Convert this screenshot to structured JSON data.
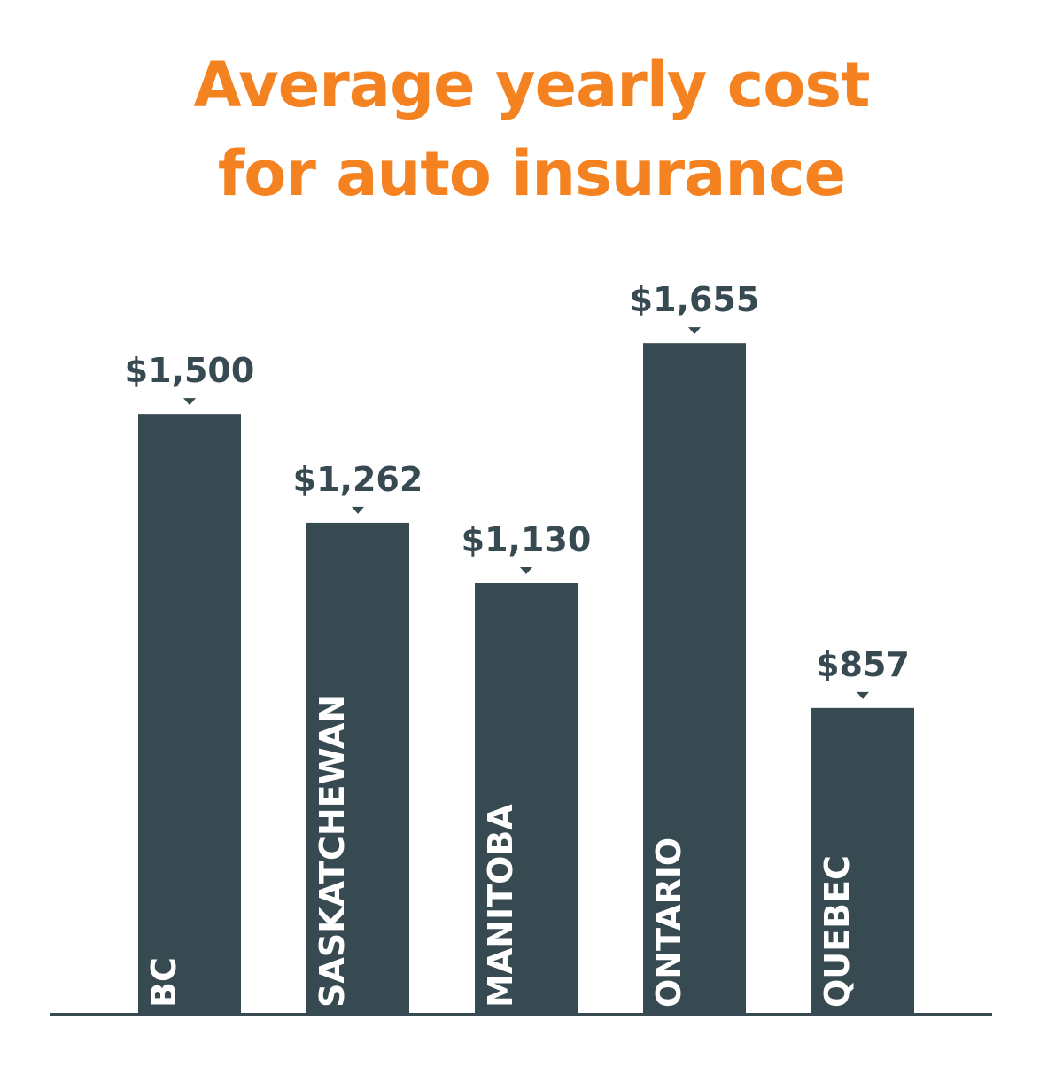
{
  "chart_data": {
    "type": "bar",
    "title": [
      "Average yearly cost",
      "for auto insurance"
    ],
    "categories": [
      "BC",
      "SASKATCHEWAN",
      "MANITOBA",
      "ONTARIO",
      "QUEBEC"
    ],
    "values": [
      1500,
      1262,
      1130,
      1655,
      857
    ],
    "value_labels": [
      "$1,500",
      "$1,262",
      "$1,130",
      "$1,655",
      "$857"
    ],
    "color": "#374a51",
    "title_color": "#f58220",
    "ylim": [
      186,
      1824
    ]
  }
}
